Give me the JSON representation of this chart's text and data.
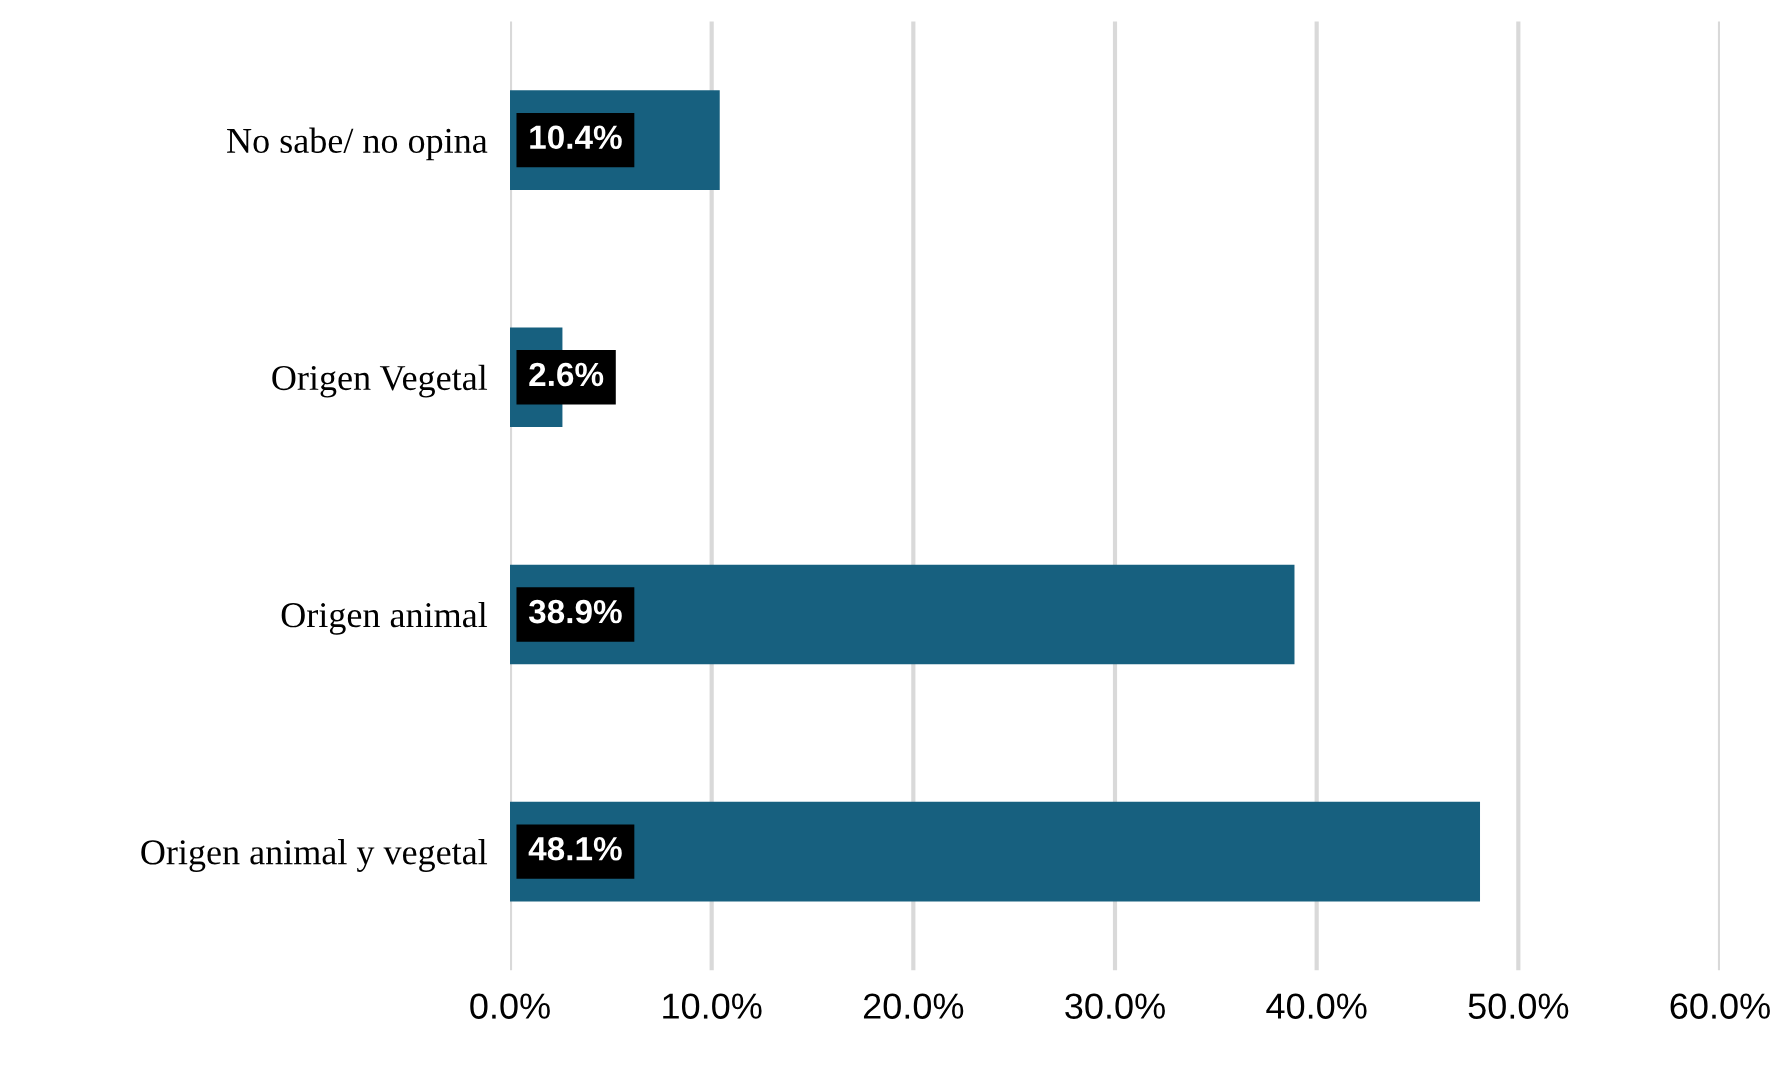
{
  "chart_data": {
    "type": "bar",
    "orientation": "horizontal",
    "categories": [
      "No sabe/ no opina",
      "Origen Vegetal",
      "Origen animal",
      "Origen animal y vegetal"
    ],
    "values": [
      10.4,
      2.6,
      38.9,
      48.1
    ],
    "value_labels": [
      "10.4%",
      "2.6%",
      "38.9%",
      "48.1%"
    ],
    "color": "#17607f",
    "xlim": [
      0,
      60
    ],
    "xticks": [
      {
        "value": 0,
        "label": "0.0%"
      },
      {
        "value": 10,
        "label": "10.0%"
      },
      {
        "value": 20,
        "label": "20.0%"
      },
      {
        "value": 30,
        "label": "30.0%"
      },
      {
        "value": 40,
        "label": "40.0%"
      },
      {
        "value": 50,
        "label": "50.0%"
      },
      {
        "value": 60,
        "label": "60.0%"
      }
    ],
    "grid": "x",
    "legend": false
  }
}
